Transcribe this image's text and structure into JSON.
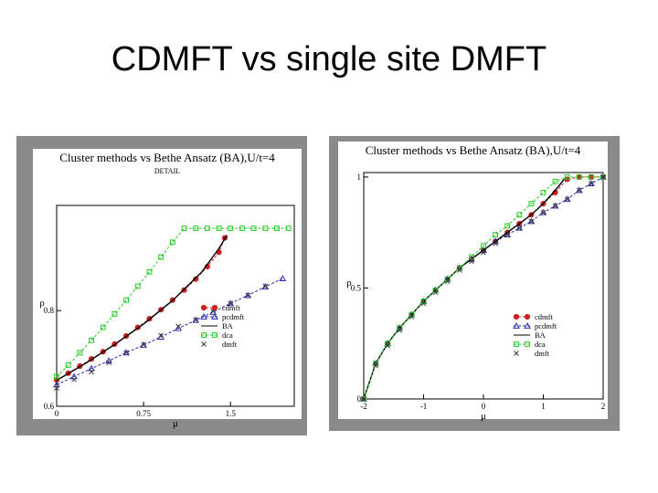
{
  "slide": {
    "title": "CDMFT vs single site DMFT"
  },
  "colors": {
    "cdmft": "#d02020",
    "pcdmft": "#2b2bb0",
    "ba": "#000000",
    "dca": "#22cc22",
    "dmft": "#3a3a3a"
  },
  "chart_data": [
    {
      "type": "line",
      "title": "Cluster methods vs Bethe Ansatz (BA),U/t=4",
      "subtitle": "DETAIL",
      "xlabel": "μ",
      "ylabel": "ρ",
      "xlim": [
        0,
        2.05
      ],
      "ylim": [
        0.6,
        1.02
      ],
      "xticks": [
        0,
        0.75,
        1.5
      ],
      "xtick_labels": [
        "0",
        "0.75",
        "1.5"
      ],
      "yticks": [
        0.6,
        0.8
      ],
      "ytick_labels": [
        "0.6",
        "0.8"
      ],
      "legend_position": "lower-right",
      "series": [
        {
          "name": "cdmft",
          "marker": "circle",
          "dashed": true,
          "x": [
            0,
            0.1,
            0.2,
            0.3,
            0.4,
            0.5,
            0.6,
            0.7,
            0.8,
            0.9,
            1.0,
            1.1,
            1.2,
            1.3,
            1.4,
            1.45
          ],
          "y": [
            0.655,
            0.669,
            0.684,
            0.699,
            0.714,
            0.73,
            0.747,
            0.765,
            0.783,
            0.802,
            0.822,
            0.843,
            0.866,
            0.892,
            0.922,
            0.952
          ]
        },
        {
          "name": "pcdmft",
          "marker": "triangle",
          "dashed": true,
          "x": [
            0,
            0.15,
            0.3,
            0.45,
            0.6,
            0.75,
            0.9,
            1.05,
            1.2,
            1.35,
            1.5,
            1.65,
            1.8,
            1.95
          ],
          "y": [
            0.645,
            0.662,
            0.679,
            0.695,
            0.712,
            0.728,
            0.745,
            0.763,
            0.78,
            0.797,
            0.815,
            0.832,
            0.85,
            0.867
          ]
        },
        {
          "name": "BA",
          "marker": "none",
          "dashed": false,
          "x": [
            0,
            0.25,
            0.5,
            0.75,
            1.0,
            1.25,
            1.4,
            1.47
          ],
          "y": [
            0.654,
            0.69,
            0.729,
            0.772,
            0.821,
            0.88,
            0.93,
            0.958
          ]
        },
        {
          "name": "dca",
          "marker": "square",
          "dashed": true,
          "x": [
            0,
            0.1,
            0.2,
            0.3,
            0.4,
            0.5,
            0.6,
            0.7,
            0.8,
            0.9,
            1.0,
            1.1,
            1.2,
            1.3,
            1.4,
            1.5,
            1.6,
            1.7,
            1.8,
            1.9,
            2.0
          ],
          "y": [
            0.662,
            0.686,
            0.712,
            0.738,
            0.765,
            0.793,
            0.822,
            0.851,
            0.881,
            0.912,
            0.943,
            0.972,
            0.972,
            0.972,
            0.972,
            0.972,
            0.972,
            0.972,
            0.972,
            0.972,
            0.972
          ]
        },
        {
          "name": "dmft",
          "marker": "x",
          "dashed": false,
          "x": [
            0,
            0.15,
            0.3,
            0.45,
            0.6,
            0.75,
            0.9,
            1.05,
            1.2,
            1.35,
            1.5,
            1.65,
            1.8
          ],
          "y": [
            0.638,
            0.656,
            0.672,
            0.691,
            0.712,
            0.729,
            0.748,
            0.767,
            0.781,
            0.799,
            0.815,
            0.832,
            0.851
          ]
        }
      ]
    },
    {
      "type": "line",
      "title": "Cluster methods vs Bethe Ansatz (BA),U/t=4",
      "xlabel": "μ",
      "ylabel": "ρ",
      "xlim": [
        -2,
        2
      ],
      "ylim": [
        0,
        1.02
      ],
      "xticks": [
        -2,
        -1,
        0,
        1,
        2
      ],
      "xtick_labels": [
        "-2",
        "-1",
        "0",
        "1",
        "2"
      ],
      "yticks": [
        0,
        0.5,
        1
      ],
      "ytick_labels": [
        "0",
        "0.5",
        "1"
      ],
      "legend_position": "lower-right",
      "series": [
        {
          "name": "cdmft",
          "marker": "circle",
          "dashed": true,
          "x": [
            -2,
            -1.8,
            -1.6,
            -1.4,
            -1.2,
            -1.0,
            -0.8,
            -0.6,
            -0.4,
            -0.2,
            0,
            0.2,
            0.4,
            0.6,
            0.8,
            1.0,
            1.2,
            1.4,
            1.6,
            1.8,
            2.0
          ],
          "y": [
            0.0,
            0.16,
            0.25,
            0.32,
            0.38,
            0.44,
            0.49,
            0.54,
            0.59,
            0.63,
            0.67,
            0.71,
            0.75,
            0.79,
            0.83,
            0.88,
            0.93,
            0.99,
            1.0,
            1.0,
            1.0
          ]
        },
        {
          "name": "pcdmft",
          "marker": "triangle",
          "dashed": true,
          "x": [
            -2,
            -1.8,
            -1.6,
            -1.4,
            -1.2,
            -1.0,
            -0.8,
            -0.6,
            -0.4,
            -0.2,
            0,
            0.2,
            0.4,
            0.6,
            0.8,
            1.0,
            1.2,
            1.4,
            1.6,
            1.8,
            2.0
          ],
          "y": [
            0.0,
            0.16,
            0.25,
            0.32,
            0.38,
            0.44,
            0.49,
            0.54,
            0.59,
            0.63,
            0.67,
            0.71,
            0.74,
            0.77,
            0.8,
            0.84,
            0.87,
            0.9,
            0.94,
            0.97,
            1.0
          ]
        },
        {
          "name": "BA",
          "marker": "none",
          "dashed": false,
          "x": [
            -2,
            -1.8,
            -1.6,
            -1.4,
            -1.2,
            -1.0,
            -0.8,
            -0.6,
            -0.4,
            -0.2,
            0,
            0.2,
            0.4,
            0.6,
            0.8,
            1.0,
            1.2,
            1.35
          ],
          "y": [
            0.0,
            0.16,
            0.25,
            0.32,
            0.38,
            0.44,
            0.49,
            0.54,
            0.59,
            0.63,
            0.67,
            0.71,
            0.75,
            0.79,
            0.83,
            0.88,
            0.94,
            0.99
          ]
        },
        {
          "name": "dca",
          "marker": "square",
          "dashed": true,
          "x": [
            -2,
            -1.8,
            -1.6,
            -1.4,
            -1.2,
            -1.0,
            -0.8,
            -0.6,
            -0.4,
            -0.2,
            0,
            0.2,
            0.4,
            0.6,
            0.8,
            1.0,
            1.2,
            1.4,
            1.6,
            1.8,
            2.0
          ],
          "y": [
            0.0,
            0.16,
            0.25,
            0.32,
            0.38,
            0.44,
            0.49,
            0.54,
            0.59,
            0.64,
            0.69,
            0.74,
            0.78,
            0.83,
            0.88,
            0.93,
            0.98,
            1.0,
            1.0,
            1.0,
            1.0
          ]
        },
        {
          "name": "dmft",
          "marker": "x",
          "dashed": false,
          "x": [
            -2,
            -1.8,
            -1.6,
            -1.4,
            -1.2,
            -1.0,
            -0.8,
            -0.6,
            -0.4,
            -0.2,
            0,
            0.2,
            0.4,
            0.6,
            0.8,
            1.0,
            1.2,
            1.4,
            1.6,
            1.8,
            2.0
          ],
          "y": [
            0.0,
            0.15,
            0.24,
            0.31,
            0.37,
            0.43,
            0.48,
            0.53,
            0.58,
            0.62,
            0.66,
            0.7,
            0.74,
            0.77,
            0.8,
            0.84,
            0.87,
            0.9,
            0.94,
            0.97,
            1.0
          ]
        }
      ]
    }
  ]
}
